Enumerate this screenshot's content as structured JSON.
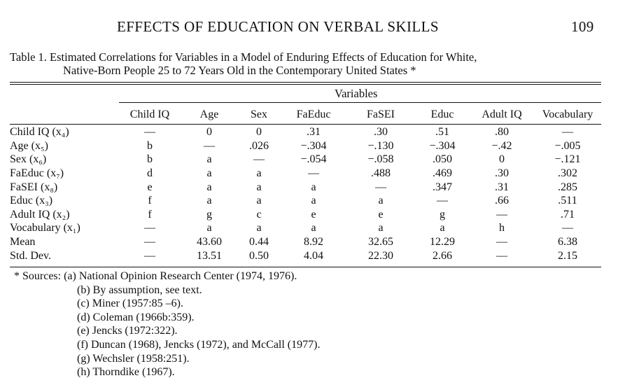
{
  "running_head": {
    "title": "EFFECTS OF EDUCATION ON VERBAL SKILLS",
    "page_number": "109"
  },
  "caption": {
    "line1": "Table 1. Estimated Correlations for Variables in a Model of Enduring Effects of Education for White,",
    "line2": "Native-Born People 25 to 72 Years Old in the Contemporary United States *"
  },
  "table": {
    "group_label": "Variables",
    "columns": [
      "Child IQ",
      "Age",
      "Sex",
      "FaEduc",
      "FaSEI",
      "Educ",
      "Adult IQ",
      "Vocabulary"
    ],
    "rows": [
      {
        "label": "Child IQ (x₄)",
        "cells": [
          "—",
          "0",
          "0",
          ".31",
          ".30",
          ".51",
          ".80",
          "—"
        ]
      },
      {
        "label": "Age (x₅)",
        "cells": [
          "b",
          "—",
          ".026",
          "−.304",
          "−.130",
          "−.304",
          "−.42",
          "−.005"
        ]
      },
      {
        "label": "Sex (x₆)",
        "cells": [
          "b",
          "a",
          "—",
          "−.054",
          "−.058",
          ".050",
          "0",
          "−.121"
        ]
      },
      {
        "label": "FaEduc (x₇)",
        "cells": [
          "d",
          "a",
          "a",
          "—",
          ".488",
          ".469",
          ".30",
          ".302"
        ]
      },
      {
        "label": "FaSEI (x₈)",
        "cells": [
          "e",
          "a",
          "a",
          "a",
          "—",
          ".347",
          ".31",
          ".285"
        ]
      },
      {
        "label": "Educ (x₃)",
        "cells": [
          "f",
          "a",
          "a",
          "a",
          "a",
          "—",
          ".66",
          ".511"
        ]
      },
      {
        "label": "Adult IQ (x₂)",
        "cells": [
          "f",
          "g",
          "c",
          "e",
          "e",
          "g",
          "—",
          ".71"
        ]
      },
      {
        "label": "Vocabulary (x₁)",
        "cells": [
          "—",
          "a",
          "a",
          "a",
          "a",
          "a",
          "h",
          "—"
        ]
      },
      {
        "label": "Mean",
        "cells": [
          "—",
          "43.60",
          "0.44",
          "8.92",
          "32.65",
          "12.29",
          "—",
          "6.38"
        ]
      },
      {
        "label": "Std. Dev.",
        "cells": [
          "—",
          "13.51",
          "0.50",
          "4.04",
          "22.30",
          "2.66",
          "—",
          "2.15"
        ]
      }
    ]
  },
  "sources": {
    "intro": "* Sources: (a) National Opinion Research Center (1974, 1976).",
    "items": [
      "(b) By assumption, see text.",
      "(c) Miner (1957:85 –6).",
      "(d) Coleman (1966b:359).",
      "(e) Jencks (1972:322).",
      "(f) Duncan (1968), Jencks (1972), and McCall (1977).",
      "(g) Wechsler (1958:251).",
      "(h) Thorndike (1967)."
    ]
  }
}
